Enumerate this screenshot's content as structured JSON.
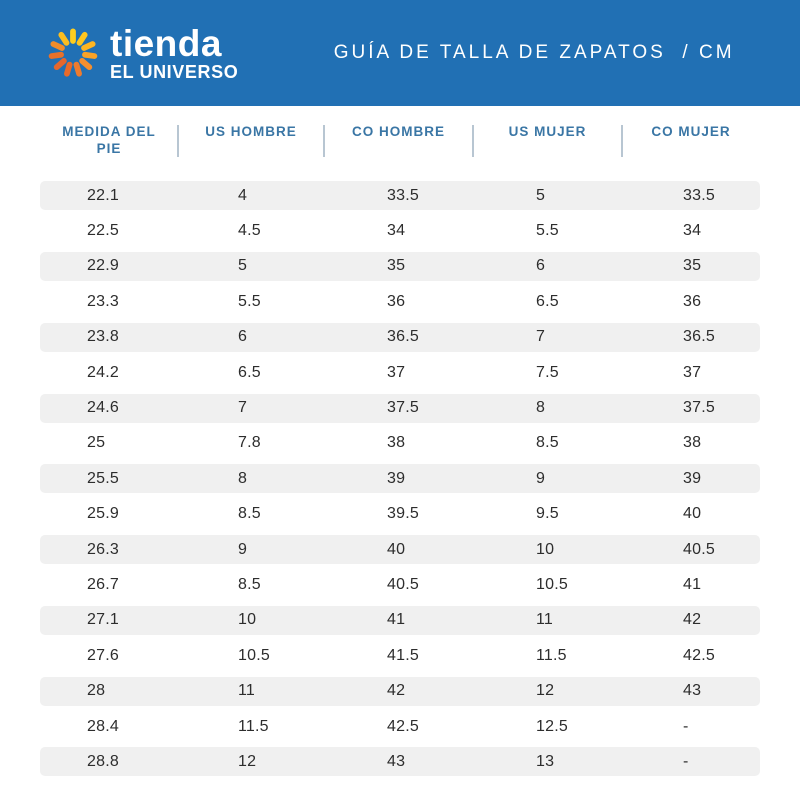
{
  "banner": {
    "logo": {
      "brand_top": "tienda",
      "brand_bottom": "EL UNIVERSO",
      "sun_petal_colors": [
        "#FFCE1F",
        "#FFC51D",
        "#FDB522",
        "#F9A226",
        "#F48F2E",
        "#EE7B2E",
        "#E86A29",
        "#E4672D",
        "#E8712A",
        "#F18C2B",
        "#FBBD20"
      ]
    },
    "title": "GUÍA DE TALLA DE ZAPATOS  / CM"
  },
  "table": {
    "columns": [
      {
        "label": "MEDIDA DEL PIE"
      },
      {
        "label": "US HOMBRE"
      },
      {
        "label": "CO HOMBRE"
      },
      {
        "label": "US MUJER"
      },
      {
        "label": "CO MUJER"
      }
    ],
    "rows": [
      [
        "22.1",
        "4",
        "33.5",
        "5",
        "33.5"
      ],
      [
        "22.5",
        "4.5",
        "34",
        "5.5",
        "34"
      ],
      [
        "22.9",
        "5",
        "35",
        "6",
        "35"
      ],
      [
        "23.3",
        "5.5",
        "36",
        "6.5",
        "36"
      ],
      [
        "23.8",
        "6",
        "36.5",
        "7",
        "36.5"
      ],
      [
        "24.2",
        "6.5",
        "37",
        "7.5",
        "37"
      ],
      [
        "24.6",
        "7",
        "37.5",
        "8",
        "37.5"
      ],
      [
        "25",
        "7.8",
        "38",
        "8.5",
        "38"
      ],
      [
        "25.5",
        "8",
        "39",
        "9",
        "39"
      ],
      [
        "25.9",
        "8.5",
        "39.5",
        "9.5",
        "40"
      ],
      [
        "26.3",
        "9",
        "40",
        "10",
        "40.5"
      ],
      [
        "26.7",
        "8.5",
        "40.5",
        "10.5",
        "41"
      ],
      [
        "27.1",
        "10",
        "41",
        "11",
        "42"
      ],
      [
        "27.6",
        "10.5",
        "41.5",
        "11.5",
        "42.5"
      ],
      [
        "28",
        "11",
        "42",
        "12",
        "43"
      ],
      [
        "28.4",
        "11.5",
        "42.5",
        "12.5",
        "-"
      ],
      [
        "28.8",
        "12",
        "43",
        "13",
        "-"
      ]
    ]
  },
  "colors": {
    "brand_blue": "#2170b4",
    "header_label_blue": "#3a76a5",
    "row_stripe_gray": "#f0f0f0",
    "data_text": "#2d2d2d",
    "divider": "#b8c6d2",
    "white": "#ffffff"
  }
}
